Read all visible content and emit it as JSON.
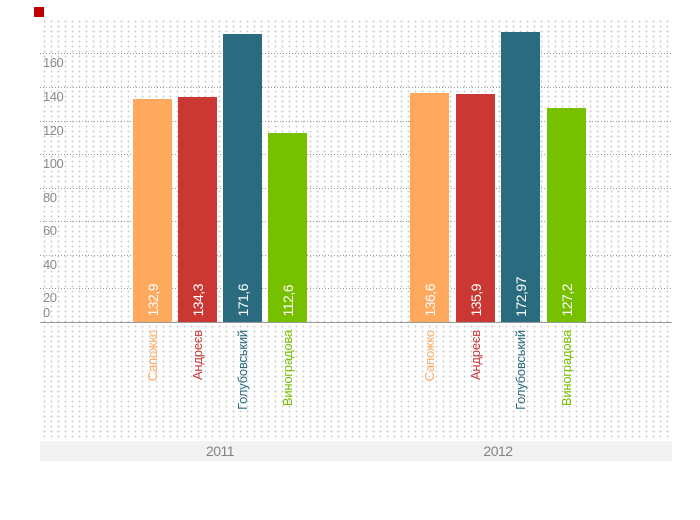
{
  "marker_color": "#c00000",
  "chart_data": {
    "type": "bar",
    "title": "",
    "xlabel": "",
    "ylabel": "",
    "categories": [
      "2011",
      "2012"
    ],
    "series": [
      {
        "name": "Сапожко",
        "color": "#FFA95F",
        "values": [
          132.9,
          136.6
        ],
        "display": [
          "132,9",
          "136,6"
        ]
      },
      {
        "name": "Андреєв",
        "color": "#CB3834",
        "values": [
          134.3,
          135.9
        ],
        "display": [
          "134,3",
          "135,9"
        ]
      },
      {
        "name": "Голубовський",
        "color": "#2A6B7F",
        "values": [
          171.6,
          172.97
        ],
        "display": [
          "171,6",
          "172,97"
        ]
      },
      {
        "name": "Виноградова",
        "color": "#76C000",
        "values": [
          112.6,
          127.2
        ],
        "display": [
          "112,6",
          "127,2"
        ]
      }
    ],
    "y_ticks": [
      {
        "value": 160,
        "label": "160"
      },
      {
        "value": 140,
        "label": "140"
      },
      {
        "value": 120,
        "label": "120"
      },
      {
        "value": 100,
        "label": "100"
      },
      {
        "value": 80,
        "label": "80"
      },
      {
        "value": 60,
        "label": "60"
      },
      {
        "value": 40,
        "label": "40"
      },
      {
        "value": 20,
        "label": "20"
      },
      {
        "value": 0,
        "label": "0"
      }
    ],
    "ylim": [
      0,
      181
    ],
    "grid": "dotted",
    "legend": "none",
    "value_labels": "inside-bottom-rotated-90ccw",
    "category_labels": "below-axis-rotated-90ccw-colored",
    "axis_text_color": "#8c8c8c"
  }
}
